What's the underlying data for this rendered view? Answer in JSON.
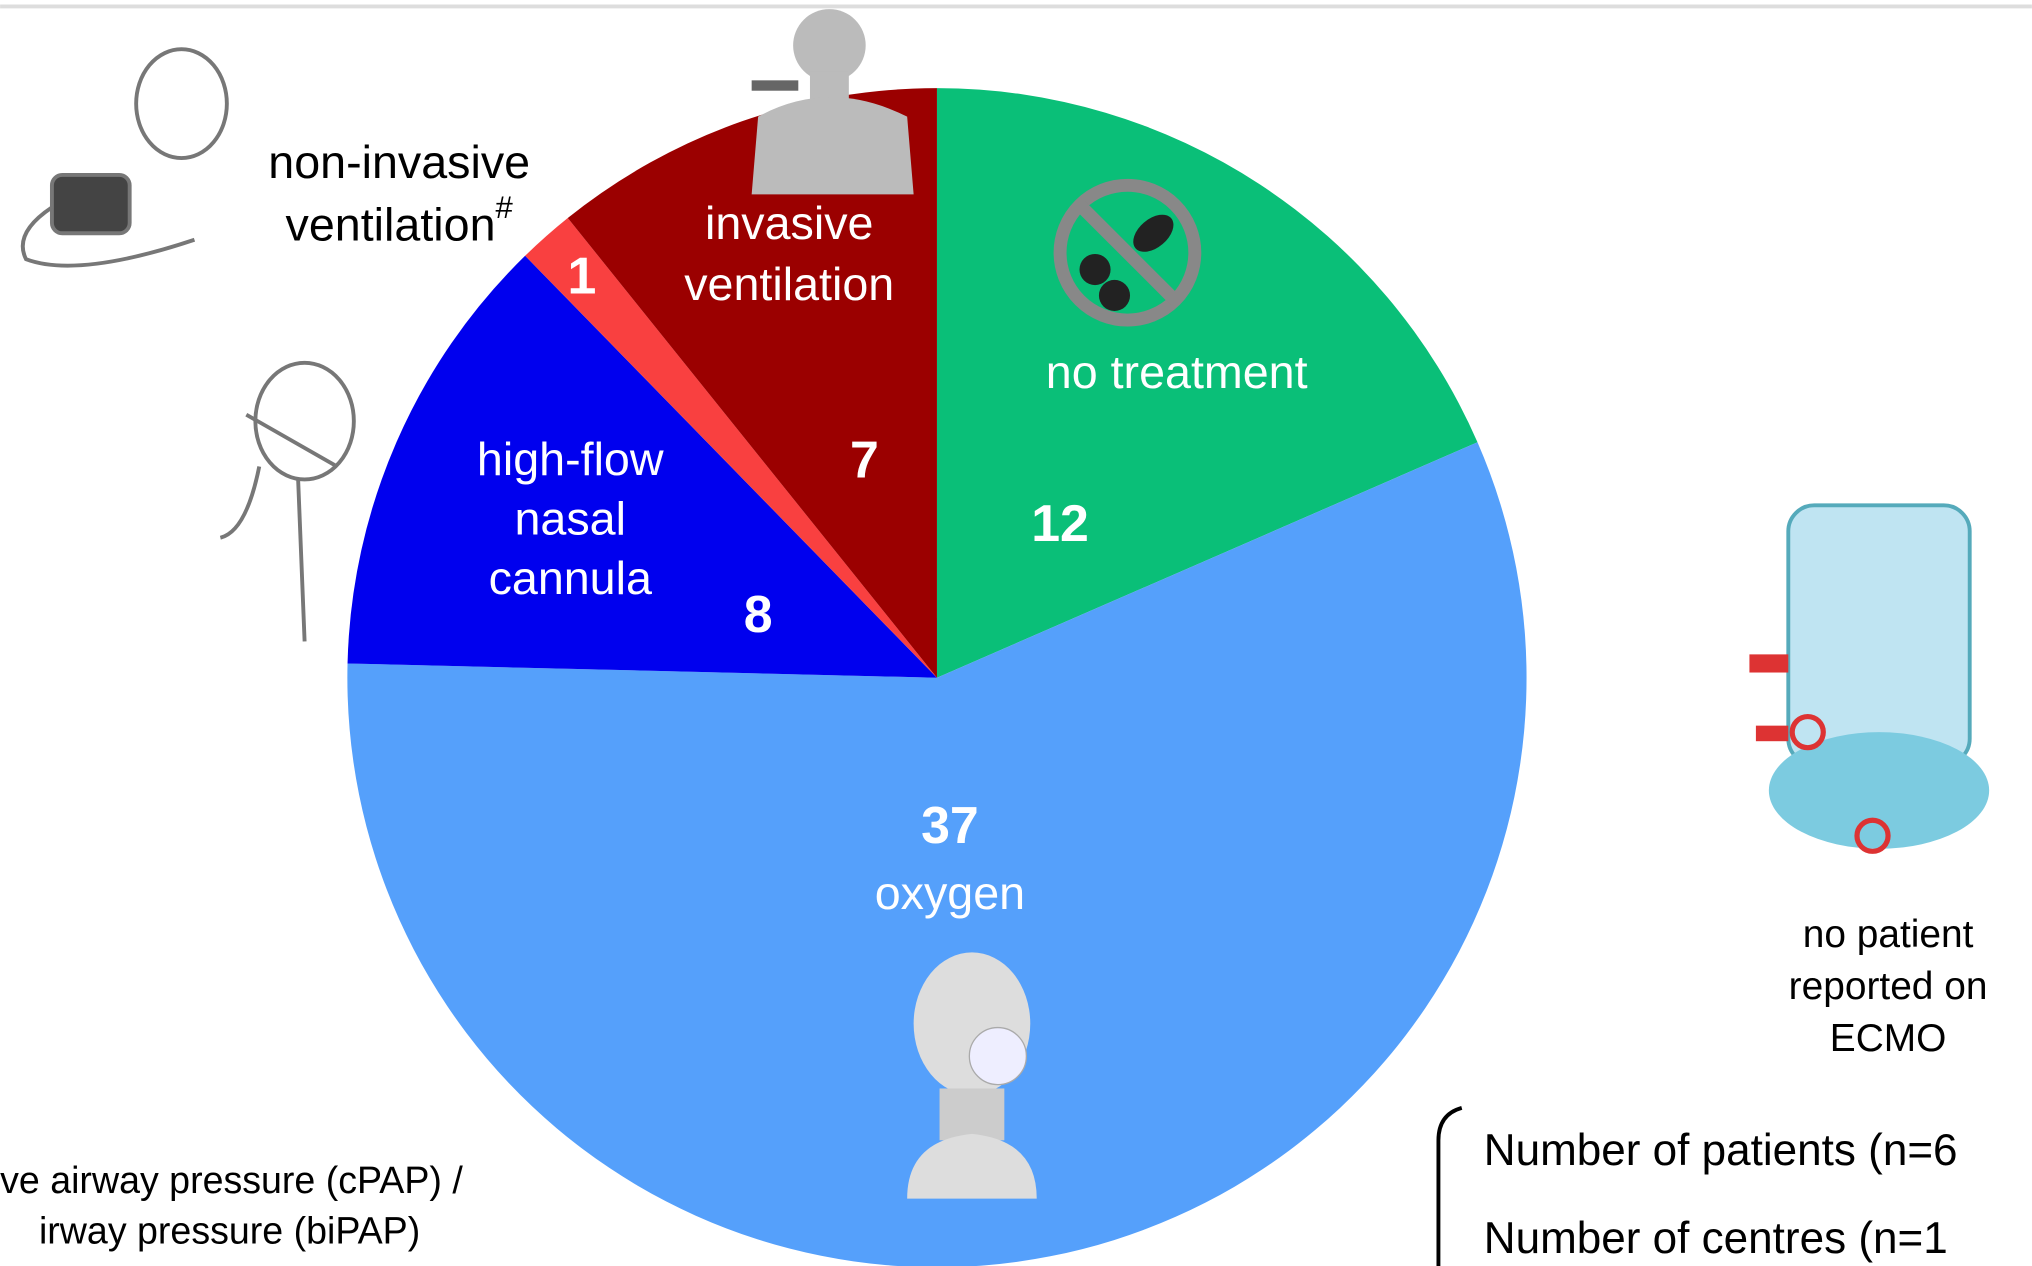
{
  "chart_data": {
    "type": "pie",
    "categories": [
      [
        "no treatment"
      ],
      [
        "oxygen"
      ],
      [
        "high-flow",
        "nasal",
        "cannula"
      ],
      [
        "non-invasive",
        "ventilation"
      ],
      [
        "invasive",
        "ventilation"
      ]
    ],
    "footnote_marker": "#",
    "series": [
      {
        "values": [
          12,
          37,
          8,
          1,
          7
        ],
        "colors": [
          "#0abf78",
          "#55a0fb",
          "#0000ee",
          "#f94040",
          "#9b0000"
        ]
      }
    ],
    "note": [
      "no patient",
      "reported on",
      "ECMO"
    ],
    "footnote": [
      "ve airway pressure (cPAP) /",
      "irway pressure (biPAP)"
    ],
    "summary": [
      "Number of patients (n=6",
      "Number of centres (n=1"
    ]
  }
}
